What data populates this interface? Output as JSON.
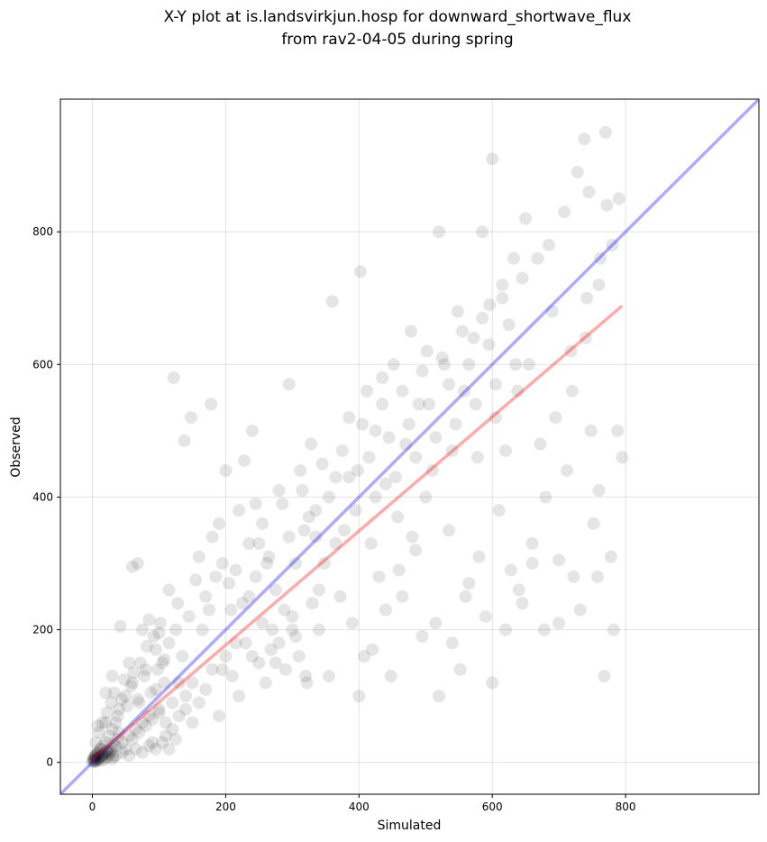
{
  "chart_data": {
    "type": "scatter",
    "title_line1": "X-Y plot at is.landsvirkjun.hosp for downward_shortwave_flux",
    "title_line2": "from rav2-04-05 during spring",
    "xlabel": "Simulated",
    "ylabel": "Observed",
    "xlim": [
      -48,
      1000
    ],
    "ylim": [
      -48,
      1000
    ],
    "x_ticks": [
      0,
      200,
      400,
      600,
      800
    ],
    "y_ticks": [
      0,
      200,
      400,
      600,
      800
    ],
    "tick_labels_x": [
      "0",
      "200",
      "400",
      "600",
      "800"
    ],
    "tick_labels_y": [
      "0",
      "200",
      "400",
      "600",
      "800"
    ],
    "grid": true,
    "point_color": "#000000",
    "identity_line": {
      "x": [
        -48,
        1000
      ],
      "y": [
        -48,
        1000
      ],
      "color": "#0000ff"
    },
    "fit_line": {
      "x": [
        0,
        793
      ],
      "y": [
        5,
        687
      ],
      "color": "#ff0000"
    },
    "points": [
      [
        2,
        4
      ],
      [
        3,
        8
      ],
      [
        4,
        2
      ],
      [
        5,
        12
      ],
      [
        6,
        5
      ],
      [
        8,
        15
      ],
      [
        10,
        7
      ],
      [
        12,
        20
      ],
      [
        14,
        10
      ],
      [
        16,
        25
      ],
      [
        18,
        14
      ],
      [
        20,
        30
      ],
      [
        22,
        18
      ],
      [
        25,
        40
      ],
      [
        28,
        22
      ],
      [
        30,
        50
      ],
      [
        32,
        28
      ],
      [
        35,
        60
      ],
      [
        38,
        35
      ],
      [
        40,
        45
      ],
      [
        5,
        30
      ],
      [
        8,
        55
      ],
      [
        12,
        20
      ],
      [
        15,
        10
      ],
      [
        20,
        60
      ],
      [
        25,
        15
      ],
      [
        30,
        5
      ],
      [
        35,
        25
      ],
      [
        40,
        80
      ],
      [
        45,
        30
      ],
      [
        50,
        100
      ],
      [
        55,
        40
      ],
      [
        60,
        120
      ],
      [
        65,
        50
      ],
      [
        70,
        90
      ],
      [
        75,
        60
      ],
      [
        80,
        140
      ],
      [
        85,
        70
      ],
      [
        90,
        30
      ],
      [
        95,
        110
      ],
      [
        100,
        80
      ],
      [
        105,
        150
      ],
      [
        110,
        60
      ],
      [
        115,
        180
      ],
      [
        120,
        90
      ],
      [
        125,
        200
      ],
      [
        130,
        70
      ],
      [
        135,
        160
      ],
      [
        140,
        100
      ],
      [
        145,
        220
      ],
      [
        20,
        105
      ],
      [
        30,
        130
      ],
      [
        42,
        205
      ],
      [
        55,
        150
      ],
      [
        60,
        295
      ],
      [
        68,
        300
      ],
      [
        75,
        200
      ],
      [
        85,
        215
      ],
      [
        95,
        170
      ],
      [
        100,
        195
      ],
      [
        108,
        120
      ],
      [
        115,
        260
      ],
      [
        122,
        580
      ],
      [
        128,
        240
      ],
      [
        138,
        485
      ],
      [
        148,
        520
      ],
      [
        155,
        275
      ],
      [
        160,
        310
      ],
      [
        170,
        250
      ],
      [
        178,
        540
      ],
      [
        180,
        340
      ],
      [
        190,
        360
      ],
      [
        195,
        300
      ],
      [
        200,
        440
      ],
      [
        208,
        230
      ],
      [
        215,
        180
      ],
      [
        220,
        380
      ],
      [
        228,
        455
      ],
      [
        235,
        250
      ],
      [
        240,
        500
      ],
      [
        245,
        390
      ],
      [
        250,
        330
      ],
      [
        255,
        210
      ],
      [
        262,
        300
      ],
      [
        268,
        170
      ],
      [
        275,
        150
      ],
      [
        280,
        410
      ],
      [
        288,
        230
      ],
      [
        295,
        570
      ],
      [
        300,
        200
      ],
      [
        305,
        190
      ],
      [
        312,
        440
      ],
      [
        318,
        350
      ],
      [
        322,
        120
      ],
      [
        328,
        480
      ],
      [
        335,
        380
      ],
      [
        340,
        260
      ],
      [
        348,
        300
      ],
      [
        355,
        130
      ],
      [
        360,
        695
      ],
      [
        365,
        430
      ],
      [
        372,
        250
      ],
      [
        378,
        350
      ],
      [
        385,
        520
      ],
      [
        390,
        210
      ],
      [
        398,
        440
      ],
      [
        402,
        740
      ],
      [
        408,
        160
      ],
      [
        412,
        560
      ],
      [
        418,
        330
      ],
      [
        425,
        500
      ],
      [
        430,
        280
      ],
      [
        435,
        580
      ],
      [
        440,
        420
      ],
      [
        448,
        130
      ],
      [
        452,
        600
      ],
      [
        458,
        370
      ],
      [
        465,
        250
      ],
      [
        470,
        480
      ],
      [
        478,
        650
      ],
      [
        485,
        320
      ],
      [
        490,
        540
      ],
      [
        495,
        190
      ],
      [
        502,
        620
      ],
      [
        510,
        440
      ],
      [
        515,
        210
      ],
      [
        520,
        800
      ],
      [
        528,
        600
      ],
      [
        535,
        350
      ],
      [
        540,
        470
      ],
      [
        548,
        680
      ],
      [
        552,
        140
      ],
      [
        558,
        560
      ],
      [
        565,
        270
      ],
      [
        572,
        640
      ],
      [
        578,
        460
      ],
      [
        585,
        800
      ],
      [
        590,
        220
      ],
      [
        596,
        690
      ],
      [
        600,
        910
      ],
      [
        605,
        520
      ],
      [
        610,
        380
      ],
      [
        615,
        720
      ],
      [
        620,
        470
      ],
      [
        628,
        290
      ],
      [
        632,
        760
      ],
      [
        638,
        560
      ],
      [
        645,
        240
      ],
      [
        650,
        820
      ],
      [
        655,
        600
      ],
      [
        660,
        300
      ],
      [
        668,
        760
      ],
      [
        672,
        480
      ],
      [
        678,
        200
      ],
      [
        685,
        780
      ],
      [
        690,
        680
      ],
      [
        695,
        520
      ],
      [
        700,
        305
      ],
      [
        708,
        830
      ],
      [
        712,
        440
      ],
      [
        718,
        620
      ],
      [
        722,
        280
      ],
      [
        728,
        890
      ],
      [
        732,
        230
      ],
      [
        738,
        940
      ],
      [
        742,
        700
      ],
      [
        748,
        500
      ],
      [
        752,
        360
      ],
      [
        758,
        280
      ],
      [
        762,
        760
      ],
      [
        768,
        130
      ],
      [
        772,
        840
      ],
      [
        778,
        310
      ],
      [
        782,
        200
      ],
      [
        788,
        500
      ],
      [
        790,
        850
      ],
      [
        795,
        460
      ],
      [
        770,
        950
      ],
      [
        760,
        410
      ],
      [
        745,
        860
      ],
      [
        50,
        20
      ],
      [
        60,
        35
      ],
      [
        70,
        45
      ],
      [
        80,
        55
      ],
      [
        90,
        65
      ],
      [
        100,
        75
      ],
      [
        110,
        40
      ],
      [
        120,
        50
      ],
      [
        130,
        120
      ],
      [
        140,
        80
      ],
      [
        150,
        60
      ],
      [
        160,
        90
      ],
      [
        170,
        110
      ],
      [
        180,
        140
      ],
      [
        190,
        70
      ],
      [
        200,
        160
      ],
      [
        210,
        130
      ],
      [
        220,
        100
      ],
      [
        230,
        180
      ],
      [
        240,
        160
      ],
      [
        250,
        150
      ],
      [
        260,
        120
      ],
      [
        270,
        200
      ],
      [
        280,
        180
      ],
      [
        290,
        140
      ],
      [
        300,
        220
      ],
      [
        310,
        160
      ],
      [
        320,
        130
      ],
      [
        330,
        240
      ],
      [
        340,
        200
      ],
      [
        150,
        120
      ],
      [
        165,
        200
      ],
      [
        175,
        230
      ],
      [
        185,
        280
      ],
      [
        195,
        140
      ],
      [
        205,
        270
      ],
      [
        215,
        290
      ],
      [
        225,
        240
      ],
      [
        235,
        330
      ],
      [
        245,
        280
      ],
      [
        255,
        360
      ],
      [
        265,
        310
      ],
      [
        275,
        260
      ],
      [
        285,
        390
      ],
      [
        295,
        340
      ],
      [
        305,
        300
      ],
      [
        315,
        410
      ],
      [
        325,
        370
      ],
      [
        335,
        340
      ],
      [
        345,
        450
      ],
      [
        355,
        400
      ],
      [
        365,
        330
      ],
      [
        375,
        470
      ],
      [
        385,
        430
      ],
      [
        395,
        380
      ],
      [
        405,
        510
      ],
      [
        415,
        460
      ],
      [
        425,
        400
      ],
      [
        435,
        540
      ],
      [
        445,
        490
      ],
      [
        455,
        430
      ],
      [
        465,
        560
      ],
      [
        475,
        510
      ],
      [
        485,
        460
      ],
      [
        495,
        590
      ],
      [
        505,
        540
      ],
      [
        515,
        490
      ],
      [
        525,
        610
      ],
      [
        535,
        570
      ],
      [
        545,
        510
      ],
      [
        555,
        650
      ],
      [
        565,
        600
      ],
      [
        575,
        540
      ],
      [
        585,
        670
      ],
      [
        595,
        630
      ],
      [
        605,
        570
      ],
      [
        615,
        700
      ],
      [
        625,
        660
      ],
      [
        635,
        600
      ],
      [
        645,
        730
      ],
      [
        400,
        100
      ],
      [
        420,
        170
      ],
      [
        440,
        230
      ],
      [
        460,
        290
      ],
      [
        480,
        340
      ],
      [
        500,
        400
      ],
      [
        520,
        100
      ],
      [
        540,
        180
      ],
      [
        560,
        250
      ],
      [
        580,
        310
      ],
      [
        600,
        120
      ],
      [
        620,
        200
      ],
      [
        640,
        260
      ],
      [
        660,
        330
      ],
      [
        680,
        400
      ],
      [
        700,
        210
      ],
      [
        720,
        560
      ],
      [
        740,
        640
      ],
      [
        760,
        720
      ],
      [
        780,
        780
      ],
      [
        10,
        45
      ],
      [
        15,
        60
      ],
      [
        22,
        75
      ],
      [
        28,
        90
      ],
      [
        33,
        105
      ],
      [
        38,
        70
      ],
      [
        44,
        95
      ],
      [
        48,
        125
      ],
      [
        52,
        85
      ],
      [
        58,
        115
      ],
      [
        62,
        135
      ],
      [
        68,
        95
      ],
      [
        72,
        150
      ],
      [
        78,
        130
      ],
      [
        82,
        175
      ],
      [
        88,
        105
      ],
      [
        92,
        190
      ],
      [
        98,
        140
      ],
      [
        102,
        210
      ],
      [
        108,
        155
      ],
      [
        35,
        10
      ],
      [
        45,
        15
      ],
      [
        55,
        10
      ],
      [
        65,
        20
      ],
      [
        75,
        15
      ],
      [
        85,
        25
      ],
      [
        95,
        20
      ],
      [
        105,
        30
      ],
      [
        115,
        20
      ],
      [
        125,
        35
      ],
      [
        0,
        1
      ],
      [
        1,
        3
      ],
      [
        2,
        6
      ],
      [
        3,
        1
      ],
      [
        4,
        9
      ],
      [
        5,
        3
      ],
      [
        6,
        11
      ],
      [
        7,
        2
      ],
      [
        8,
        6
      ],
      [
        9,
        14
      ],
      [
        11,
        4
      ],
      [
        13,
        9
      ],
      [
        15,
        3
      ],
      [
        17,
        12
      ],
      [
        19,
        6
      ],
      [
        21,
        16
      ],
      [
        23,
        8
      ],
      [
        26,
        12
      ],
      [
        29,
        18
      ],
      [
        31,
        9
      ]
    ]
  }
}
